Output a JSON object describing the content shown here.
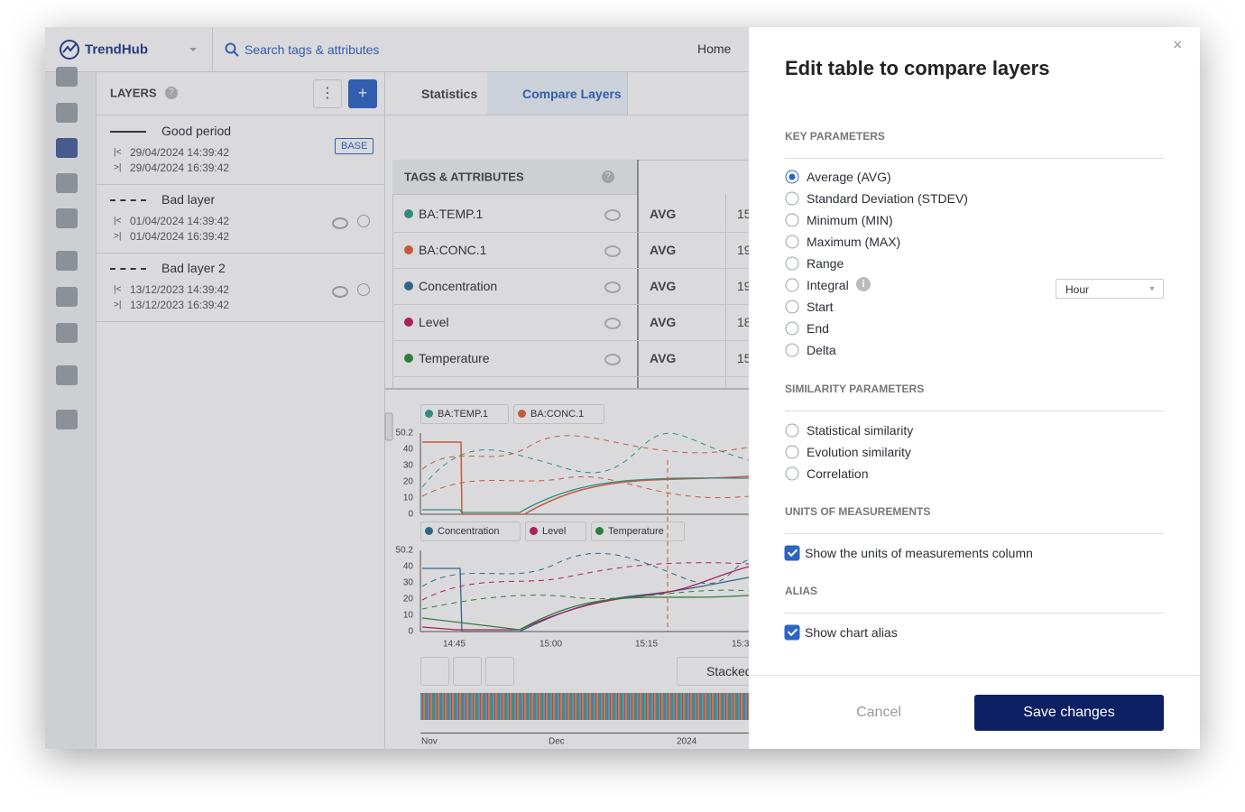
{
  "app": {
    "brand": "TrendHub",
    "search": "Search tags & attributes",
    "nav": "Home"
  },
  "layers_panel": {
    "title": "LAYERS",
    "add": "+",
    "layers": [
      {
        "name": "Good period",
        "start": "29/04/2024 14:39:42",
        "end": "29/04/2024 16:39:42",
        "badge": "BASE",
        "line": "solid"
      },
      {
        "name": "Bad layer",
        "start": "01/04/2024 14:39:42",
        "end": "01/04/2024 16:39:42",
        "line": "dashed"
      },
      {
        "name": "Bad layer 2",
        "start": "13/12/2023 14:39:42",
        "end": "13/12/2023 16:39:42",
        "line": "dashed"
      }
    ]
  },
  "tabs": [
    "Statistics",
    "Compare Layers"
  ],
  "active_tab": 1,
  "table": {
    "header": "TAGS & ATTRIBUTES",
    "rows": [
      {
        "tag": "BA:TEMP.1",
        "stat": "AVG",
        "value": "15",
        "color": "#2a9d8f"
      },
      {
        "tag": "BA:CONC.1",
        "stat": "AVG",
        "value": "19",
        "color": "#e2613a"
      },
      {
        "tag": "Concentration",
        "stat": "AVG",
        "value": "19",
        "color": "#2a6f97"
      },
      {
        "tag": "Level",
        "stat": "AVG",
        "value": "18",
        "color": "#c2185b"
      },
      {
        "tag": "Temperature",
        "stat": "AVG",
        "value": "15",
        "color": "#2e8b3a"
      }
    ]
  },
  "chart1": {
    "legend": [
      {
        "name": "BA:TEMP.1",
        "color": "#2a9d8f"
      },
      {
        "name": "BA:CONC.1",
        "color": "#e2613a"
      }
    ],
    "yticks": [
      "50.2",
      "40",
      "30",
      "20",
      "10",
      "0"
    ]
  },
  "chart2": {
    "legend": [
      {
        "name": "Concentration",
        "color": "#2a6f97"
      },
      {
        "name": "Level",
        "color": "#c2185b"
      },
      {
        "name": "Temperature",
        "color": "#2e8b3a"
      }
    ],
    "yticks": [
      "50.2",
      "40",
      "30",
      "20",
      "10",
      "0"
    ],
    "xticks": [
      "14:45",
      "15:00",
      "15:15",
      "15:3"
    ]
  },
  "controls": {
    "stacked": "Stacked"
  },
  "timeline": {
    "xticks": [
      "Nov",
      "Dec",
      "2024"
    ]
  },
  "modal": {
    "title": "Edit table to compare layers",
    "close": "×",
    "key_parameters": {
      "label": "KEY PARAMETERS",
      "selected": 0,
      "options": [
        "Average (AVG)",
        "Standard Deviation (STDEV)",
        "Minimum (MIN)",
        "Maximum (MAX)",
        "Range",
        "Integral",
        "Start",
        "End",
        "Delta"
      ],
      "integral_unit": "Hour"
    },
    "similarity_parameters": {
      "label": "SIMILARITY PARAMETERS",
      "options": [
        "Statistical similarity",
        "Evolution similarity",
        "Correlation"
      ]
    },
    "units": {
      "label": "UNITS OF MEASUREMENTS",
      "checkbox": "Show the units of measurements column",
      "checked": true
    },
    "alias": {
      "label": "ALIAS",
      "checkbox": "Show chart alias",
      "checked": true
    },
    "cancel": "Cancel",
    "save": "Save changes"
  }
}
